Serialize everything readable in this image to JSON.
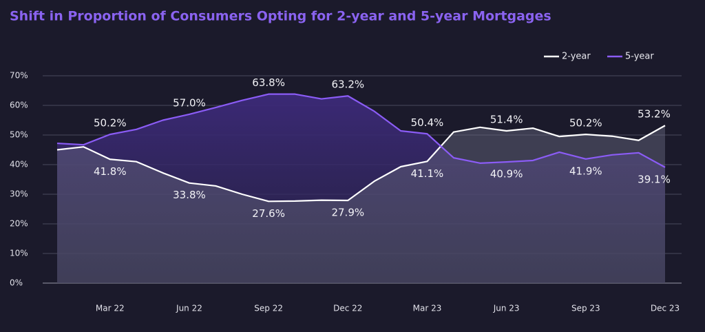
{
  "chart_data": {
    "type": "line",
    "title": "Shift in Proportion of Consumers Opting for 2-year and 5-year Mortgages",
    "categories": [
      null,
      null,
      "Mar 22",
      null,
      null,
      "Jun 22",
      null,
      null,
      "Sep 22",
      null,
      null,
      "Dec 22",
      null,
      null,
      "Mar 23",
      null,
      null,
      "Jun 23",
      null,
      null,
      "Sep 23",
      null,
      null,
      "Dec 23"
    ],
    "series": [
      {
        "name": "2-year",
        "color": "#ffffff",
        "values": [
          45.0,
          46.0,
          41.8,
          41.0,
          37.2,
          33.8,
          32.8,
          30.0,
          27.6,
          27.7,
          28.0,
          27.9,
          34.4,
          39.3,
          41.1,
          51.0,
          52.6,
          51.4,
          52.3,
          49.5,
          50.2,
          49.6,
          48.2,
          53.2
        ],
        "value_labels": [
          null,
          null,
          "41.8%",
          null,
          null,
          "33.8%",
          null,
          null,
          "27.6%",
          null,
          null,
          "27.9%",
          null,
          null,
          "41.1%",
          null,
          null,
          "51.4%",
          null,
          null,
          "50.2%",
          null,
          null,
          "53.2%"
        ]
      },
      {
        "name": "5-year",
        "color": "#8b5cf6",
        "values": [
          47.2,
          46.7,
          50.2,
          51.9,
          55.0,
          57.0,
          59.3,
          61.7,
          63.8,
          63.8,
          62.2,
          63.2,
          58.0,
          51.4,
          50.4,
          42.3,
          40.5,
          40.9,
          41.4,
          44.2,
          41.9,
          43.3,
          44.0,
          39.1
        ],
        "value_labels": [
          null,
          null,
          "50.2%",
          null,
          null,
          "57.0%",
          null,
          null,
          "63.8%",
          null,
          null,
          "63.2%",
          null,
          null,
          "50.4%",
          null,
          null,
          "40.9%",
          null,
          null,
          "41.9%",
          null,
          null,
          "39.1%"
        ]
      }
    ],
    "ylim": [
      0,
      70
    ],
    "yticks": [
      {
        "value": 0,
        "label": "0%"
      },
      {
        "value": 10,
        "label": "10%"
      },
      {
        "value": 20,
        "label": "20%"
      },
      {
        "value": 30,
        "label": "30%"
      },
      {
        "value": 40,
        "label": "40%"
      },
      {
        "value": 50,
        "label": "50%"
      },
      {
        "value": 60,
        "label": "60%"
      },
      {
        "value": 70,
        "label": "70%"
      }
    ],
    "grid": true,
    "legend": "top-right"
  }
}
